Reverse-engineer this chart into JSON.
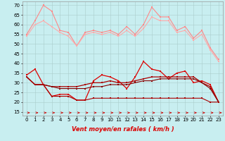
{
  "x": [
    0,
    1,
    2,
    3,
    4,
    5,
    6,
    7,
    8,
    9,
    10,
    11,
    12,
    13,
    14,
    15,
    16,
    17,
    18,
    19,
    20,
    21,
    22,
    23
  ],
  "line1": [
    55,
    62,
    70,
    67,
    57,
    56,
    49,
    56,
    57,
    56,
    57,
    55,
    59,
    55,
    60,
    69,
    64,
    64,
    57,
    59,
    53,
    57,
    48,
    42
  ],
  "line2": [
    54,
    60,
    62,
    59,
    56,
    54,
    49,
    55,
    56,
    55,
    56,
    54,
    57,
    54,
    58,
    64,
    62,
    62,
    56,
    57,
    52,
    55,
    47,
    41
  ],
  "line3": [
    34,
    37,
    29,
    23,
    24,
    24,
    21,
    21,
    31,
    34,
    33,
    31,
    27,
    33,
    41,
    37,
    36,
    32,
    35,
    36,
    30,
    31,
    29,
    20
  ],
  "line4": [
    33,
    29,
    29,
    28,
    28,
    28,
    28,
    29,
    30,
    30,
    31,
    30,
    30,
    31,
    32,
    33,
    33,
    33,
    33,
    33,
    33,
    30,
    28,
    20
  ],
  "line5": [
    33,
    29,
    29,
    28,
    27,
    27,
    27,
    27,
    28,
    28,
    29,
    29,
    29,
    30,
    31,
    31,
    32,
    32,
    32,
    32,
    32,
    30,
    27,
    20
  ],
  "line6": [
    33,
    29,
    29,
    23,
    23,
    23,
    21,
    21,
    22,
    22,
    22,
    22,
    22,
    22,
    22,
    22,
    22,
    22,
    22,
    22,
    22,
    22,
    20,
    20
  ],
  "color1": "#FF8888",
  "color2": "#FFAAAA",
  "color3": "#DD0000",
  "color4": "#AA0000",
  "color5": "#880000",
  "color6": "#AA0000",
  "arrow_color": "#CC2222",
  "bg_color": "#C8EEF0",
  "grid_minor_color": "#BBDDDD",
  "grid_major_color": "#AACCCC",
  "xlabel": "Vent moyen/en rafales ( km/h )",
  "ylim": [
    13,
    72
  ],
  "yticks": [
    15,
    20,
    25,
    30,
    35,
    40,
    45,
    50,
    55,
    60,
    65,
    70
  ],
  "xticks": [
    0,
    1,
    2,
    3,
    4,
    5,
    6,
    7,
    8,
    9,
    10,
    11,
    12,
    13,
    14,
    15,
    16,
    17,
    18,
    19,
    20,
    21,
    22,
    23
  ]
}
